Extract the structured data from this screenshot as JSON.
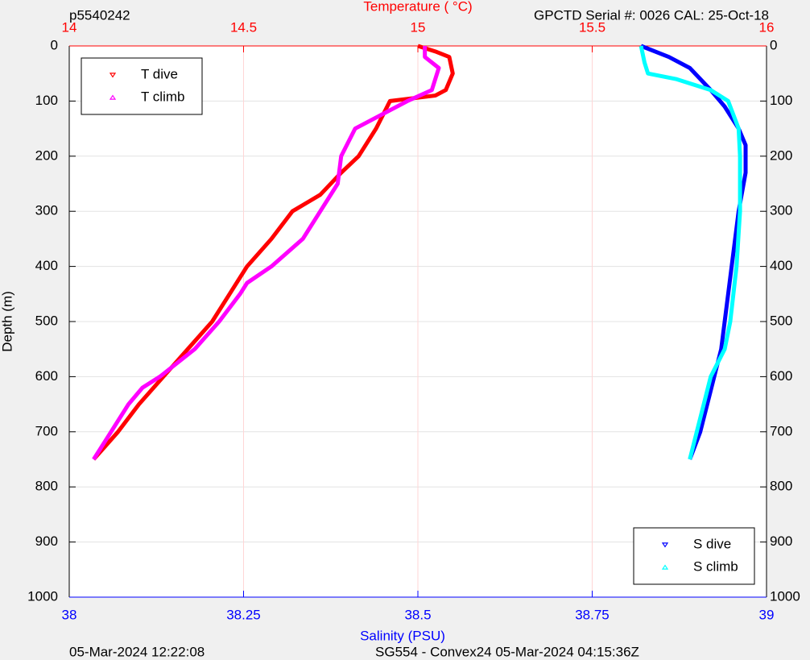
{
  "chart_data": {
    "type": "line",
    "title_left": "p5540242",
    "title_right": "GPCTD Serial #: 0026 CAL: 25-Oct-18",
    "x2label": "Temperature (    °C)",
    "xlabel": "Salinity (PSU)",
    "ylabel": "Depth (m)",
    "footer_left": "05-Mar-2024 12:22:08",
    "footer_center": "SG554 - Convex24 05-Mar-2024 04:15:36Z",
    "xlim": [
      38,
      39
    ],
    "xticks": [
      38,
      38.25,
      38.5,
      38.75,
      39
    ],
    "x2lim": [
      14,
      16
    ],
    "x2ticks": [
      14,
      14.5,
      15,
      15.5,
      16
    ],
    "ylim": [
      0,
      1000
    ],
    "yticks": [
      0,
      100,
      200,
      300,
      400,
      500,
      600,
      700,
      800,
      900,
      1000
    ],
    "y_reversed": true,
    "grid": true,
    "x_color": "#0000ff",
    "x2_color": "#ff0000",
    "legend_corners": {
      "x2": "upper left",
      "x": "lower right"
    },
    "series": [
      {
        "name": "T dive",
        "color": "#ff0000",
        "axis": "x2",
        "marker": "down",
        "x": [
          15.0,
          15.05,
          15.09,
          15.1,
          15.08,
          15.05,
          14.92,
          14.88,
          14.83,
          14.78,
          14.72,
          14.64,
          14.58,
          14.51,
          14.46,
          14.41,
          14.34,
          14.27,
          14.2,
          14.14,
          14.07
        ],
        "y": [
          0,
          10,
          20,
          50,
          80,
          90,
          100,
          150,
          200,
          230,
          270,
          300,
          350,
          400,
          450,
          500,
          550,
          600,
          650,
          700,
          750
        ]
      },
      {
        "name": "T climb",
        "color": "#ff00ff",
        "axis": "x2",
        "marker": "up",
        "x": [
          15.02,
          15.02,
          15.06,
          15.04,
          14.97,
          14.82,
          14.78,
          14.77,
          14.72,
          14.67,
          14.58,
          14.51,
          14.49,
          14.43,
          14.36,
          14.26,
          14.21,
          14.17,
          14.12,
          14.07
        ],
        "y": [
          0,
          20,
          40,
          80,
          100,
          150,
          200,
          250,
          300,
          350,
          400,
          430,
          450,
          500,
          550,
          600,
          620,
          650,
          700,
          750
        ]
      },
      {
        "name": "S dive",
        "color": "#0000ff",
        "axis": "x",
        "marker": "down",
        "x": [
          38.82,
          38.86,
          38.89,
          38.92,
          38.94,
          38.96,
          38.97,
          38.97,
          38.96,
          38.95,
          38.94,
          38.935,
          38.925,
          38.915,
          38.905,
          38.89
        ],
        "y": [
          0,
          20,
          40,
          80,
          110,
          150,
          180,
          230,
          300,
          400,
          500,
          550,
          600,
          650,
          700,
          750
        ]
      },
      {
        "name": "S climb",
        "color": "#00ffff",
        "axis": "x",
        "marker": "up",
        "x": [
          38.82,
          38.825,
          38.83,
          38.87,
          38.92,
          38.945,
          38.96,
          38.962,
          38.962,
          38.957,
          38.948,
          38.94,
          38.92,
          38.91,
          38.9,
          38.89
        ],
        "y": [
          0,
          30,
          50,
          60,
          80,
          100,
          150,
          200,
          300,
          400,
          500,
          550,
          600,
          650,
          700,
          750
        ]
      }
    ]
  }
}
